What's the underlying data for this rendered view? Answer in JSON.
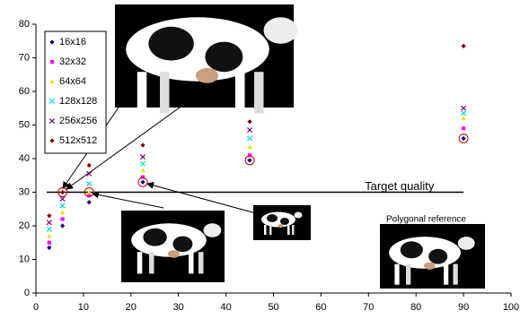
{
  "chart_data": {
    "type": "scatter",
    "x": [
      2.8,
      5.6,
      11.2,
      22.5,
      45,
      90
    ],
    "series": [
      {
        "name": "16x16",
        "color": "#000080",
        "marker": "diamond",
        "values": [
          13.5,
          20,
          27,
          33,
          39.5,
          46
        ]
      },
      {
        "name": "32x32",
        "color": "#ff00ff",
        "marker": "square",
        "values": [
          15,
          22,
          29,
          34.5,
          41,
          49
        ]
      },
      {
        "name": "64x64",
        "color": "#e6e600",
        "marker": "triangle",
        "values": [
          17,
          24,
          30,
          36.5,
          43.5,
          52
        ]
      },
      {
        "name": "128x128",
        "color": "#00e0e0",
        "marker": "x",
        "values": [
          19,
          26,
          32.5,
          38.5,
          46,
          53.5
        ]
      },
      {
        "name": "256x256",
        "color": "#800080",
        "marker": "x",
        "values": [
          21,
          28,
          35.5,
          40.5,
          48.5,
          55
        ]
      },
      {
        "name": "512x512",
        "color": "#800000",
        "marker": "diamond",
        "values": [
          23,
          30,
          38,
          44,
          51,
          73.5
        ]
      }
    ],
    "xlim": [
      0,
      100
    ],
    "xticks": [
      0,
      10,
      20,
      30,
      40,
      50,
      60,
      70,
      80,
      90,
      100
    ],
    "ylim": [
      0,
      80
    ],
    "yticks": [
      0,
      10,
      20,
      30,
      40,
      50,
      60,
      70,
      80
    ],
    "reference_line": {
      "value": 30,
      "label": "Target quality"
    },
    "annotation": "Polygonal reference"
  }
}
